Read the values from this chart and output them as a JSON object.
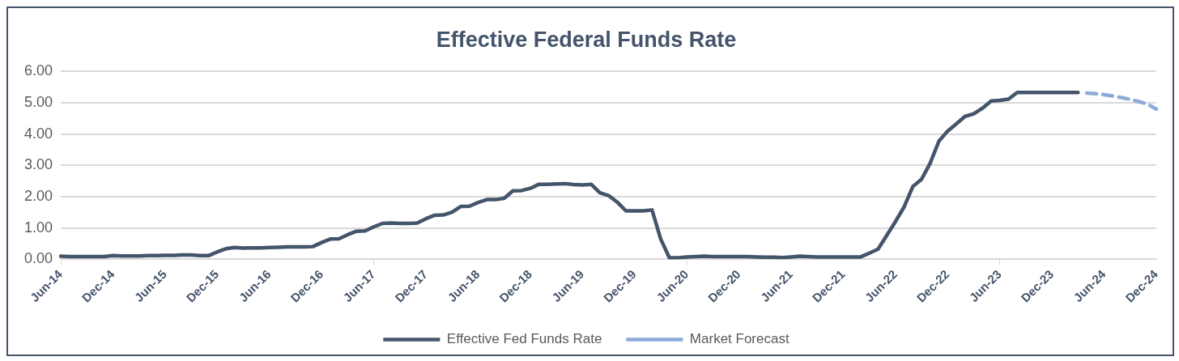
{
  "chart_data": {
    "type": "line",
    "title": "Effective Federal Funds Rate",
    "categories": [
      "Jun-14",
      null,
      null,
      null,
      null,
      null,
      "Dec-14",
      null,
      null,
      null,
      null,
      null,
      "Jun-15",
      null,
      null,
      null,
      null,
      null,
      "Dec-15",
      null,
      null,
      null,
      null,
      null,
      "Jun-16",
      null,
      null,
      null,
      null,
      null,
      "Dec-16",
      null,
      null,
      null,
      null,
      null,
      "Jun-17",
      null,
      null,
      null,
      null,
      null,
      "Dec-17",
      null,
      null,
      null,
      null,
      null,
      "Jun-18",
      null,
      null,
      null,
      null,
      null,
      "Dec-18",
      null,
      null,
      null,
      null,
      null,
      "Jun-19",
      null,
      null,
      null,
      null,
      null,
      "Dec-19",
      null,
      null,
      null,
      null,
      null,
      "Jun-20",
      null,
      null,
      null,
      null,
      null,
      "Dec-20",
      null,
      null,
      null,
      null,
      null,
      "Jun-21",
      null,
      null,
      null,
      null,
      null,
      "Dec-21",
      null,
      null,
      null,
      null,
      null,
      "Jun-22",
      null,
      null,
      null,
      null,
      null,
      "Dec-22",
      null,
      null,
      null,
      null,
      null,
      "Jun-23",
      null,
      null,
      null,
      null,
      null,
      "Dec-23",
      null,
      null,
      null,
      null,
      null,
      "Jun-24",
      null,
      null,
      null,
      null,
      null,
      "Dec-24"
    ],
    "series": [
      {
        "name": "Effective Fed Funds Rate",
        "color": "#44546a",
        "line_style": "solid",
        "values": [
          0.1,
          0.09,
          0.09,
          0.09,
          0.09,
          0.09,
          0.12,
          0.11,
          0.11,
          0.11,
          0.12,
          0.12,
          0.13,
          0.13,
          0.14,
          0.14,
          0.12,
          0.12,
          0.24,
          0.34,
          0.38,
          0.36,
          0.37,
          0.37,
          0.38,
          0.39,
          0.4,
          0.4,
          0.4,
          0.41,
          0.54,
          0.65,
          0.66,
          0.79,
          0.9,
          0.91,
          1.04,
          1.15,
          1.16,
          1.15,
          1.15,
          1.16,
          1.3,
          1.41,
          1.42,
          1.51,
          1.69,
          1.7,
          1.82,
          1.91,
          1.91,
          1.95,
          2.19,
          2.2,
          2.27,
          2.4,
          2.4,
          2.41,
          2.42,
          2.39,
          2.38,
          2.4,
          2.13,
          2.04,
          1.83,
          1.55,
          1.55,
          1.55,
          1.58,
          0.65,
          0.05,
          0.05,
          0.08,
          0.09,
          0.1,
          0.09,
          0.09,
          0.09,
          0.09,
          0.09,
          0.08,
          0.07,
          0.07,
          0.06,
          0.08,
          0.1,
          0.09,
          0.08,
          0.08,
          0.08,
          0.08,
          0.08,
          0.08,
          0.2,
          0.33,
          0.77,
          1.21,
          1.68,
          2.33,
          2.56,
          3.08,
          3.78,
          4.1,
          4.33,
          4.57,
          4.65,
          4.83,
          5.06,
          5.08,
          5.12,
          5.33,
          5.33,
          5.33,
          5.33,
          5.33,
          5.33,
          5.33,
          5.33,
          null,
          null,
          null,
          null,
          null,
          null,
          null,
          null,
          null
        ]
      },
      {
        "name": "Market Forecast",
        "color": "#8eaadb",
        "line_style": "dashed",
        "values": [
          null,
          null,
          null,
          null,
          null,
          null,
          null,
          null,
          null,
          null,
          null,
          null,
          null,
          null,
          null,
          null,
          null,
          null,
          null,
          null,
          null,
          null,
          null,
          null,
          null,
          null,
          null,
          null,
          null,
          null,
          null,
          null,
          null,
          null,
          null,
          null,
          null,
          null,
          null,
          null,
          null,
          null,
          null,
          null,
          null,
          null,
          null,
          null,
          null,
          null,
          null,
          null,
          null,
          null,
          null,
          null,
          null,
          null,
          null,
          null,
          null,
          null,
          null,
          null,
          null,
          null,
          null,
          null,
          null,
          null,
          null,
          null,
          null,
          null,
          null,
          null,
          null,
          null,
          null,
          null,
          null,
          null,
          null,
          null,
          null,
          null,
          null,
          null,
          null,
          null,
          null,
          null,
          null,
          null,
          null,
          null,
          null,
          null,
          null,
          null,
          null,
          null,
          null,
          null,
          null,
          null,
          null,
          null,
          null,
          null,
          null,
          null,
          null,
          null,
          null,
          null,
          null,
          null,
          5.31,
          5.29,
          5.26,
          5.22,
          5.17,
          5.11,
          5.04,
          4.96,
          4.8
        ]
      }
    ],
    "ylim": [
      0,
      6
    ],
    "yticks": [
      {
        "value": 0,
        "label": "0.00"
      },
      {
        "value": 1,
        "label": "1.00"
      },
      {
        "value": 2,
        "label": "2.00"
      },
      {
        "value": 3,
        "label": "3.00"
      },
      {
        "value": 4,
        "label": "4.00"
      },
      {
        "value": 5,
        "label": "5.00"
      },
      {
        "value": 6,
        "label": "6.00"
      }
    ],
    "grid": "y",
    "legend": "bottom",
    "marker": "none"
  }
}
